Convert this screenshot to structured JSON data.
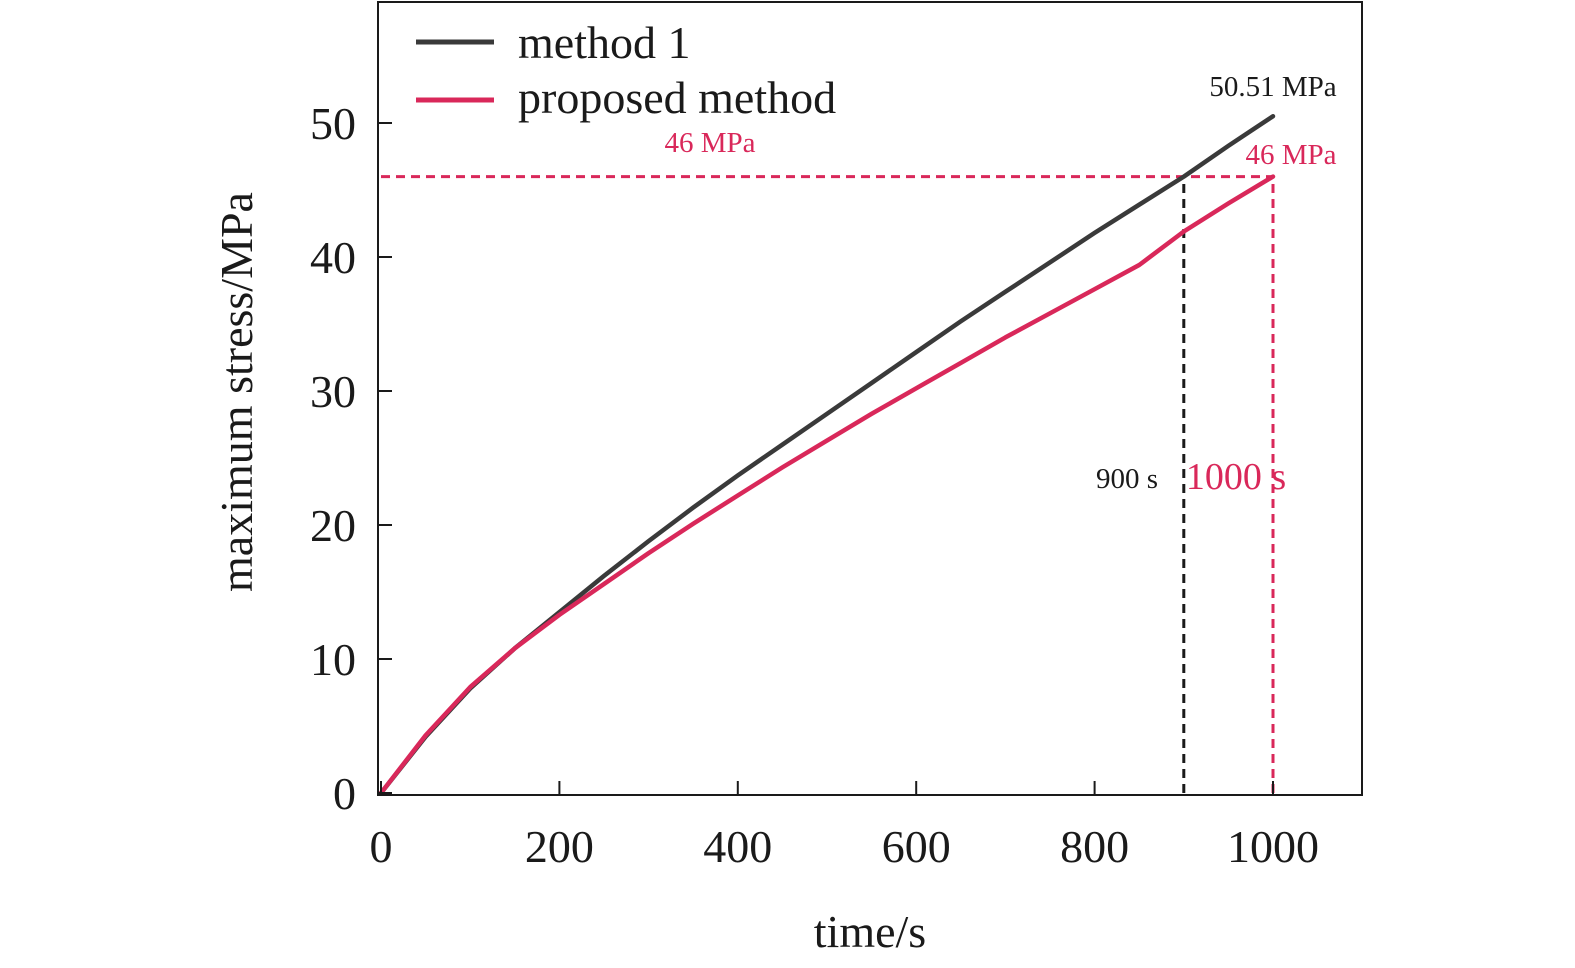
{
  "chart_data": {
    "type": "line",
    "xlabel": "time/s",
    "ylabel": "maximum stress/MPa",
    "xlim": [
      0,
      1100
    ],
    "ylim": [
      0,
      59
    ],
    "xticks": [
      0,
      200,
      400,
      600,
      800,
      1000
    ],
    "yticks": [
      0,
      10,
      20,
      30,
      40,
      50
    ],
    "grid": false,
    "legend_position": "top-left",
    "series": [
      {
        "name": "method 1",
        "color": "#3a3a3a",
        "x": [
          0,
          50,
          100,
          150,
          200,
          250,
          300,
          350,
          400,
          450,
          500,
          550,
          600,
          650,
          700,
          750,
          800,
          850,
          900,
          950,
          1000
        ],
        "y": [
          0,
          4.2,
          7.8,
          10.8,
          13.5,
          16.2,
          18.8,
          21.3,
          23.7,
          26.0,
          28.3,
          30.6,
          32.9,
          35.2,
          37.4,
          39.6,
          41.8,
          43.9,
          46.0,
          48.3,
          50.51
        ]
      },
      {
        "name": "proposed method",
        "color": "#d9285a",
        "x": [
          0,
          50,
          100,
          150,
          200,
          250,
          300,
          350,
          400,
          450,
          500,
          550,
          600,
          650,
          700,
          750,
          800,
          850,
          900,
          950,
          1000
        ],
        "y": [
          0,
          4.3,
          7.9,
          10.8,
          13.3,
          15.6,
          17.9,
          20.1,
          22.2,
          24.3,
          26.3,
          28.3,
          30.2,
          32.1,
          34.0,
          35.8,
          37.6,
          39.4,
          41.9,
          44.0,
          46.0
        ]
      }
    ],
    "reference_lines": [
      {
        "id": "h46",
        "orientation": "horizontal",
        "y": 46,
        "x_from": 0,
        "x_to": 1000,
        "color": "#d9285a"
      },
      {
        "id": "v900",
        "orientation": "vertical",
        "x": 900,
        "y_from": 0,
        "y_to": 46,
        "color": "#1a1a1a"
      },
      {
        "id": "v1000",
        "orientation": "vertical",
        "x": 1000,
        "y_from": 0,
        "y_to": 46,
        "color": "#d9285a"
      }
    ],
    "annotations": {
      "peak_method1": "50.51 MPa",
      "peak_proposed": "46 MPa",
      "threshold": "46 MPa",
      "time_method1": "900 s",
      "time_proposed": "1000 s"
    }
  }
}
